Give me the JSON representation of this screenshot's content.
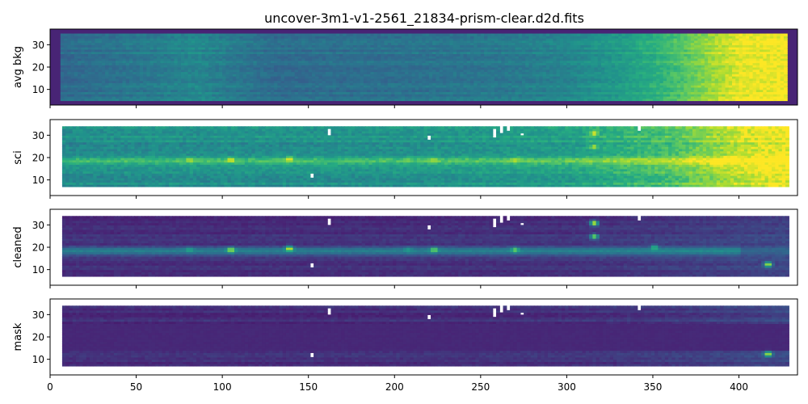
{
  "chart_data": {
    "type": "heatmap",
    "title": "uncover-3m1-v1-2561_21834-prism-clear.d2d.fits",
    "shared_x": true,
    "xlim": [
      0,
      434
    ],
    "xticks": [
      0,
      50,
      100,
      150,
      200,
      250,
      300,
      350,
      400
    ],
    "colormap": "viridis",
    "panels": [
      {
        "ylabel": "avg bkg",
        "ylim": [
          3,
          37
        ],
        "yticks": [
          10,
          20,
          30
        ],
        "data_rows": [
          5,
          35
        ],
        "valid_cols": [
          6,
          428
        ],
        "column_profile": [
          [
            0,
            0.34
          ],
          [
            20,
            0.37
          ],
          [
            60,
            0.42
          ],
          [
            85,
            0.47
          ],
          [
            95,
            0.44
          ],
          [
            130,
            0.36
          ],
          [
            200,
            0.38
          ],
          [
            260,
            0.41
          ],
          [
            300,
            0.46
          ],
          [
            330,
            0.55
          ],
          [
            350,
            0.64
          ],
          [
            370,
            0.76
          ],
          [
            385,
            0.88
          ],
          [
            395,
            0.94
          ],
          [
            400,
            0.98
          ],
          [
            428,
            1.0
          ]
        ],
        "row_variation": 0.07,
        "features": []
      },
      {
        "ylabel": "sci",
        "ylim": [
          3,
          37
        ],
        "yticks": [
          10,
          20,
          30
        ],
        "data_rows": [
          7,
          34
        ],
        "valid_cols": [
          7,
          428
        ],
        "trace_y": 18.5,
        "column_profile": [
          [
            0,
            0.48
          ],
          [
            60,
            0.5
          ],
          [
            100,
            0.5
          ],
          [
            200,
            0.51
          ],
          [
            260,
            0.54
          ],
          [
            300,
            0.56
          ],
          [
            330,
            0.64
          ],
          [
            360,
            0.72
          ],
          [
            380,
            0.82
          ],
          [
            395,
            0.9
          ],
          [
            410,
            0.96
          ],
          [
            428,
            1.0
          ]
        ],
        "row_variation": 0.1,
        "features": [
          {
            "x": 80,
            "y": 19,
            "value": 0.9
          },
          {
            "x": 104,
            "y": 19,
            "value": 1.0
          },
          {
            "x": 138,
            "y": 19.5,
            "value": 1.0
          },
          {
            "x": 207,
            "y": 19,
            "value": 0.8
          },
          {
            "x": 222,
            "y": 19,
            "value": 0.9
          },
          {
            "x": 269,
            "y": 19,
            "value": 0.9
          },
          {
            "x": 315,
            "y": 31,
            "value": 1.0
          },
          {
            "x": 315,
            "y": 25,
            "value": 0.9
          }
        ]
      },
      {
        "ylabel": "cleaned",
        "ylim": [
          3,
          37
        ],
        "yticks": [
          10,
          20,
          30
        ],
        "data_rows": [
          7,
          34
        ],
        "valid_cols": [
          7,
          428
        ],
        "trace_y": 18.5,
        "column_profile": [
          [
            0,
            0.16
          ],
          [
            150,
            0.16
          ],
          [
            300,
            0.17
          ],
          [
            380,
            0.2
          ],
          [
            428,
            0.22
          ]
        ],
        "row_variation": 0.06,
        "features": [
          {
            "x": 80,
            "y": 19,
            "value": 0.6
          },
          {
            "x": 104,
            "y": 19,
            "value": 0.95
          },
          {
            "x": 138,
            "y": 19.5,
            "value": 1.0
          },
          {
            "x": 207,
            "y": 19,
            "value": 0.55
          },
          {
            "x": 222,
            "y": 19,
            "value": 0.85
          },
          {
            "x": 269,
            "y": 19,
            "value": 0.8
          },
          {
            "x": 315,
            "y": 31,
            "value": 1.0
          },
          {
            "x": 315,
            "y": 25,
            "value": 0.85
          },
          {
            "x": 350,
            "y": 20,
            "value": 0.7
          },
          {
            "x": 416,
            "y": 12.5,
            "value": 0.95
          }
        ]
      },
      {
        "ylabel": "mask",
        "ylim": [
          3,
          37
        ],
        "yticks": [
          10,
          20,
          30
        ],
        "data_rows": [
          7,
          34
        ],
        "valid_cols": [
          7,
          428
        ],
        "masked_rows": [
          14,
          26
        ],
        "column_profile": [
          [
            0,
            0.15
          ],
          [
            150,
            0.15
          ],
          [
            300,
            0.16
          ],
          [
            380,
            0.19
          ],
          [
            428,
            0.22
          ]
        ],
        "row_variation": 0.06,
        "features": [
          {
            "x": 416,
            "y": 12.5,
            "value": 0.95
          }
        ]
      }
    ],
    "blank_regions": [
      {
        "x": [
          160,
          163
        ],
        "y": [
          30,
          33
        ]
      },
      {
        "x": [
          150,
          153
        ],
        "y": [
          11,
          13
        ]
      },
      {
        "x": [
          218,
          220
        ],
        "y": [
          28,
          29.5
        ]
      },
      {
        "x": [
          256,
          258
        ],
        "y": [
          29,
          33
        ]
      },
      {
        "x": [
          260,
          263
        ],
        "y": [
          31,
          34
        ]
      },
      {
        "x": [
          265,
          267
        ],
        "y": [
          32,
          34
        ]
      },
      {
        "x": [
          272,
          274
        ],
        "y": [
          30,
          31
        ]
      },
      {
        "x": [
          340,
          342
        ],
        "y": [
          32,
          34
        ]
      }
    ]
  }
}
